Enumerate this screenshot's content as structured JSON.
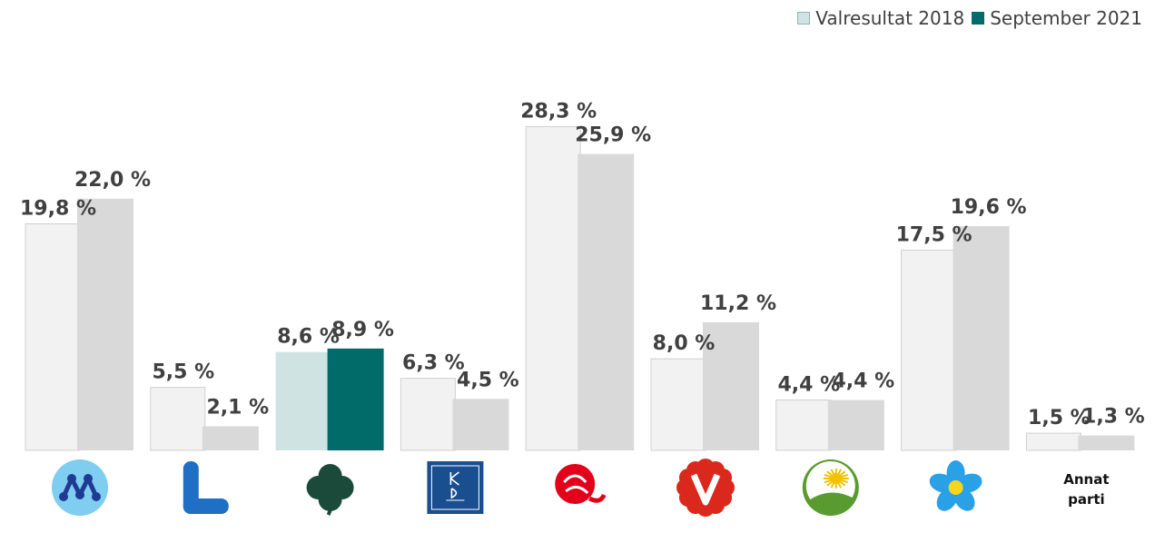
{
  "legend": [
    {
      "name": "Valresultat 2018",
      "color": "#cfe3e3"
    },
    {
      "name": "September 2021",
      "color": "#006b69"
    }
  ],
  "chart_data": {
    "type": "bar",
    "ylim": [
      0,
      30
    ],
    "legend_position": "top-right",
    "grid": false,
    "categories": [
      "M",
      "L",
      "C",
      "KD",
      "S",
      "V",
      "MP",
      "SD",
      "Annat parti"
    ],
    "category_icons": [
      "moderaterna-logo-icon",
      "liberalerna-logo-icon",
      "centerpartiet-clover-icon",
      "kristdemokraterna-logo-icon",
      "socialdemokraterna-rose-icon",
      "vansterpartiet-logo-icon",
      "miljopartiet-dandelion-icon",
      "sverigedemokraterna-flower-icon",
      ""
    ],
    "other_label_lines": [
      "Annat",
      "parti"
    ],
    "series": [
      {
        "name": "Valresultat 2018",
        "values": [
          19.8,
          5.5,
          8.6,
          6.3,
          28.3,
          8.0,
          4.4,
          17.5,
          1.5
        ],
        "labels": [
          "19,8 %",
          "5,5 %",
          "8,6 %",
          "6,3 %",
          "28,3 %",
          "8,0 %",
          "4,4 %",
          "17,5 %",
          "1,5 %"
        ]
      },
      {
        "name": "September 2021",
        "values": [
          22.0,
          2.1,
          8.9,
          4.5,
          25.9,
          11.2,
          4.4,
          19.6,
          1.3
        ],
        "labels": [
          "22,0 %",
          "2,1 %",
          "8,9 %",
          "4,5 %",
          "25,9 %",
          "11,2 %",
          "4,4 %",
          "19,6 %",
          "1,3 %"
        ]
      }
    ],
    "colors": {
      "default_2018": "#f2f2f2",
      "default_2021": "#d9d9d9",
      "default_2018_stroke": "#d0d0d0",
      "highlight_index": 2,
      "highlight_2018": "#cfe3e3",
      "highlight_2021": "#006b69"
    }
  }
}
